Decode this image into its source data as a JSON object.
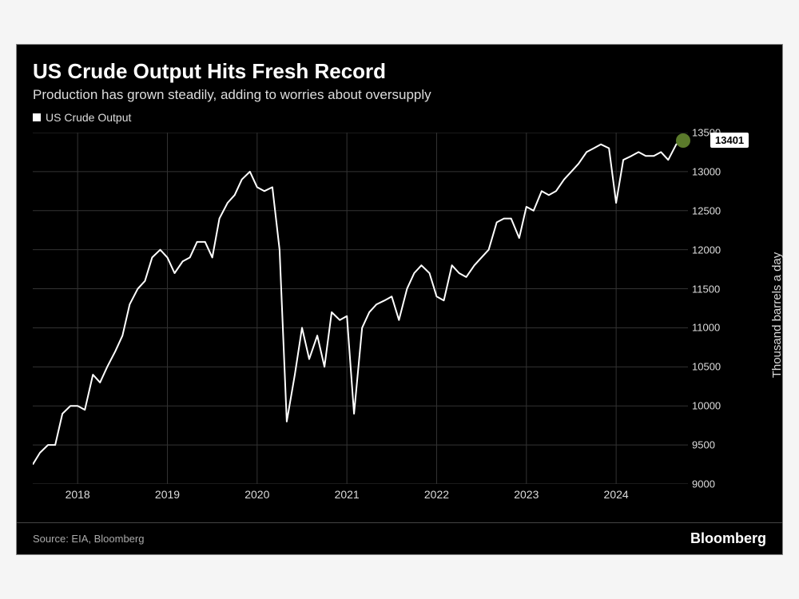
{
  "title": "US Crude Output Hits Fresh Record",
  "subtitle": "Production has grown steadily, adding to worries about oversupply",
  "legend_label": "US Crude Output",
  "source": "Source: EIA, Bloomberg",
  "brand": "Bloomberg",
  "y_axis_title": "Thousand barrels a day",
  "chart": {
    "type": "line",
    "background_color": "#000000",
    "line_color": "#ffffff",
    "line_width": 2,
    "grid_color": "#333333",
    "text_color": "#dddddd",
    "end_marker_color": "#5b7a2b",
    "last_value_label": "13401",
    "last_value": 13401,
    "ylim": [
      9000,
      13500
    ],
    "yticks": [
      9000,
      9500,
      10000,
      10500,
      11000,
      11500,
      12000,
      12500,
      13000,
      13500
    ],
    "ytick_labels": [
      "9000",
      "9500",
      "10000",
      "10500",
      "11000",
      "11500",
      "12000",
      "12500",
      "13000",
      "13500"
    ],
    "x_range": [
      2017.5,
      2024.8
    ],
    "xticks": [
      2018,
      2019,
      2020,
      2021,
      2022,
      2023,
      2024
    ],
    "xtick_labels": [
      "2018",
      "2019",
      "2020",
      "2021",
      "2022",
      "2023",
      "2024"
    ],
    "data": [
      [
        2017.5,
        9250
      ],
      [
        2017.58,
        9400
      ],
      [
        2017.67,
        9500
      ],
      [
        2017.75,
        9500
      ],
      [
        2017.83,
        9900
      ],
      [
        2017.92,
        10000
      ],
      [
        2018.0,
        10000
      ],
      [
        2018.08,
        9950
      ],
      [
        2018.17,
        10400
      ],
      [
        2018.25,
        10300
      ],
      [
        2018.33,
        10500
      ],
      [
        2018.42,
        10700
      ],
      [
        2018.5,
        10900
      ],
      [
        2018.58,
        11300
      ],
      [
        2018.67,
        11500
      ],
      [
        2018.75,
        11600
      ],
      [
        2018.83,
        11900
      ],
      [
        2018.92,
        12000
      ],
      [
        2019.0,
        11900
      ],
      [
        2019.08,
        11700
      ],
      [
        2019.17,
        11850
      ],
      [
        2019.25,
        11900
      ],
      [
        2019.33,
        12100
      ],
      [
        2019.42,
        12100
      ],
      [
        2019.5,
        11900
      ],
      [
        2019.58,
        12400
      ],
      [
        2019.67,
        12600
      ],
      [
        2019.75,
        12700
      ],
      [
        2019.83,
        12900
      ],
      [
        2019.92,
        13000
      ],
      [
        2020.0,
        12800
      ],
      [
        2020.08,
        12750
      ],
      [
        2020.17,
        12800
      ],
      [
        2020.25,
        12000
      ],
      [
        2020.33,
        9800
      ],
      [
        2020.42,
        10400
      ],
      [
        2020.5,
        11000
      ],
      [
        2020.58,
        10600
      ],
      [
        2020.67,
        10900
      ],
      [
        2020.75,
        10500
      ],
      [
        2020.83,
        11200
      ],
      [
        2020.92,
        11100
      ],
      [
        2021.0,
        11150
      ],
      [
        2021.08,
        9900
      ],
      [
        2021.17,
        11000
      ],
      [
        2021.25,
        11200
      ],
      [
        2021.33,
        11300
      ],
      [
        2021.42,
        11350
      ],
      [
        2021.5,
        11400
      ],
      [
        2021.58,
        11100
      ],
      [
        2021.67,
        11500
      ],
      [
        2021.75,
        11700
      ],
      [
        2021.83,
        11800
      ],
      [
        2021.92,
        11700
      ],
      [
        2022.0,
        11400
      ],
      [
        2022.08,
        11350
      ],
      [
        2022.17,
        11800
      ],
      [
        2022.25,
        11700
      ],
      [
        2022.33,
        11650
      ],
      [
        2022.42,
        11800
      ],
      [
        2022.5,
        11900
      ],
      [
        2022.58,
        12000
      ],
      [
        2022.67,
        12350
      ],
      [
        2022.75,
        12400
      ],
      [
        2022.83,
        12400
      ],
      [
        2022.92,
        12150
      ],
      [
        2023.0,
        12550
      ],
      [
        2023.08,
        12500
      ],
      [
        2023.17,
        12750
      ],
      [
        2023.25,
        12700
      ],
      [
        2023.33,
        12750
      ],
      [
        2023.42,
        12900
      ],
      [
        2023.5,
        13000
      ],
      [
        2023.58,
        13100
      ],
      [
        2023.67,
        13250
      ],
      [
        2023.75,
        13300
      ],
      [
        2023.83,
        13350
      ],
      [
        2023.92,
        13300
      ],
      [
        2024.0,
        12600
      ],
      [
        2024.08,
        13150
      ],
      [
        2024.17,
        13200
      ],
      [
        2024.25,
        13250
      ],
      [
        2024.33,
        13200
      ],
      [
        2024.42,
        13200
      ],
      [
        2024.5,
        13250
      ],
      [
        2024.58,
        13150
      ],
      [
        2024.67,
        13350
      ],
      [
        2024.75,
        13401
      ]
    ]
  }
}
